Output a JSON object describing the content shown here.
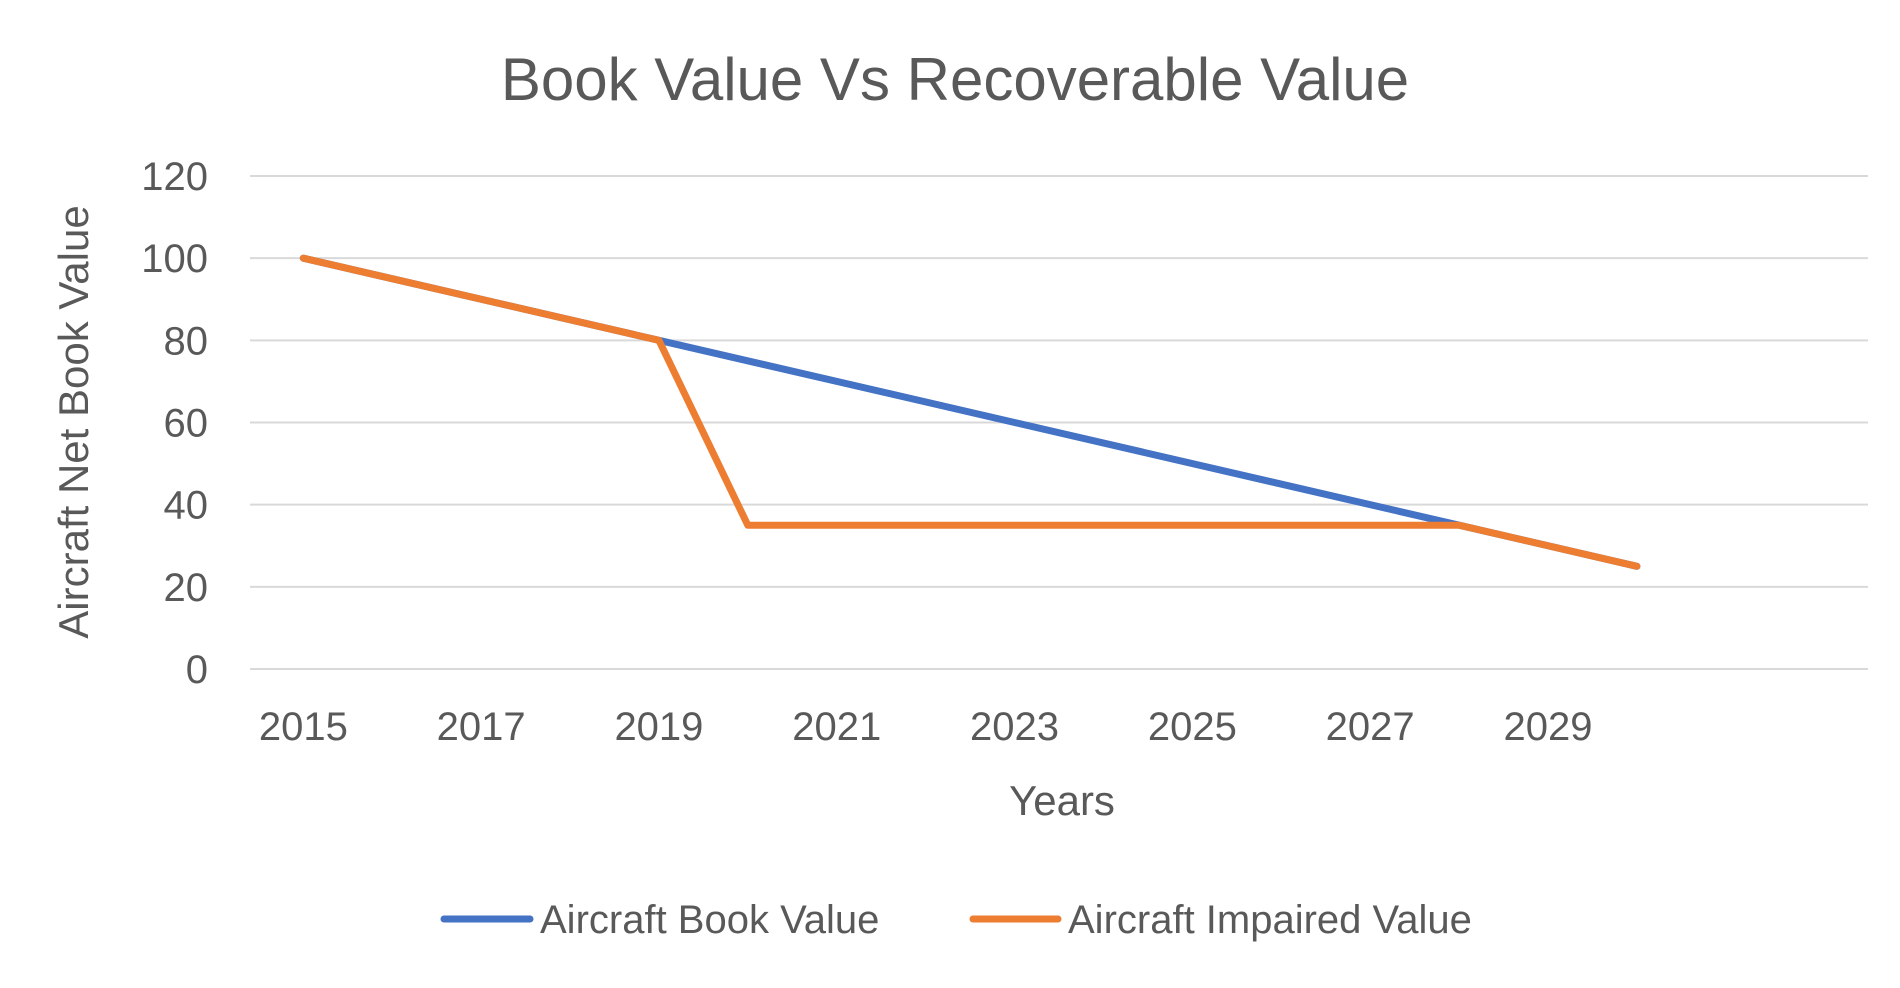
{
  "chart_data": {
    "type": "line",
    "title": "Book Value Vs Recoverable Value",
    "xlabel": "Years",
    "ylabel": "Aircraft Net Book Value",
    "ylim": [
      0,
      120
    ],
    "y_ticks": [
      "0",
      "20",
      "40",
      "60",
      "80",
      "100",
      "120"
    ],
    "x_ticks": [
      "2015",
      "2017",
      "2019",
      "2021",
      "2023",
      "2025",
      "2027",
      "2029"
    ],
    "grid": true,
    "legend_position": "bottom",
    "series": [
      {
        "name": "Aircraft Book Value",
        "color": "#4472C4",
        "points": [
          {
            "x": 2015,
            "y": 100
          },
          {
            "x": 2019,
            "y": 80
          },
          {
            "x": 2028,
            "y": 35
          },
          {
            "x": 2030,
            "y": 25
          }
        ]
      },
      {
        "name": "Aircraft Impaired Value",
        "color": "#ED7D31",
        "points": [
          {
            "x": 2015,
            "y": 100
          },
          {
            "x": 2019,
            "y": 80
          },
          {
            "x": 2020,
            "y": 35
          },
          {
            "x": 2028,
            "y": 35
          },
          {
            "x": 2030,
            "y": 25
          }
        ]
      }
    ]
  }
}
